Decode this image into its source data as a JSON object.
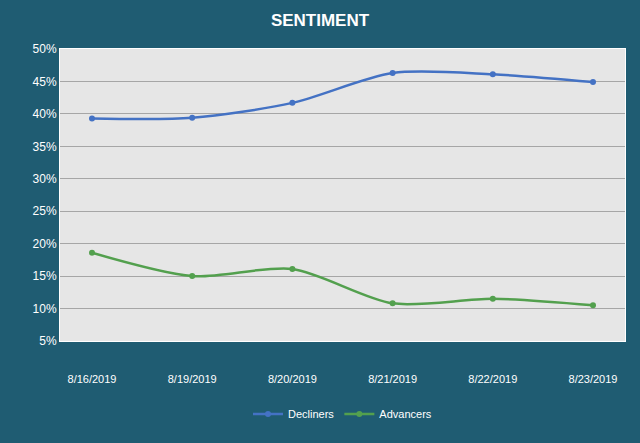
{
  "chart_data": {
    "type": "line",
    "title": "SENTIMENT",
    "categories": [
      "8/16/2019",
      "8/19/2019",
      "8/20/2019",
      "8/21/2019",
      "8/22/2019",
      "8/23/2019"
    ],
    "series": [
      {
        "name": "Decliners",
        "color": "#4472c4",
        "values": [
          39.3,
          39.4,
          41.7,
          46.3,
          46.1,
          44.9
        ]
      },
      {
        "name": "Advancers",
        "color": "#53a04e",
        "values": [
          18.6,
          15.0,
          16.1,
          10.8,
          11.5,
          10.5
        ]
      }
    ],
    "ylim": [
      5,
      50
    ],
    "yticks": [
      {
        "value": 5,
        "label": "5%"
      },
      {
        "value": 10,
        "label": "10%"
      },
      {
        "value": 15,
        "label": "15%"
      },
      {
        "value": 20,
        "label": "20%"
      },
      {
        "value": 25,
        "label": "25%"
      },
      {
        "value": 30,
        "label": "30%"
      },
      {
        "value": 35,
        "label": "35%"
      },
      {
        "value": 40,
        "label": "40%"
      },
      {
        "value": 45,
        "label": "45%"
      },
      {
        "value": 50,
        "label": "50%"
      }
    ],
    "grid": true,
    "legend": "bottom",
    "marker": "circle",
    "line_style": "smooth"
  }
}
